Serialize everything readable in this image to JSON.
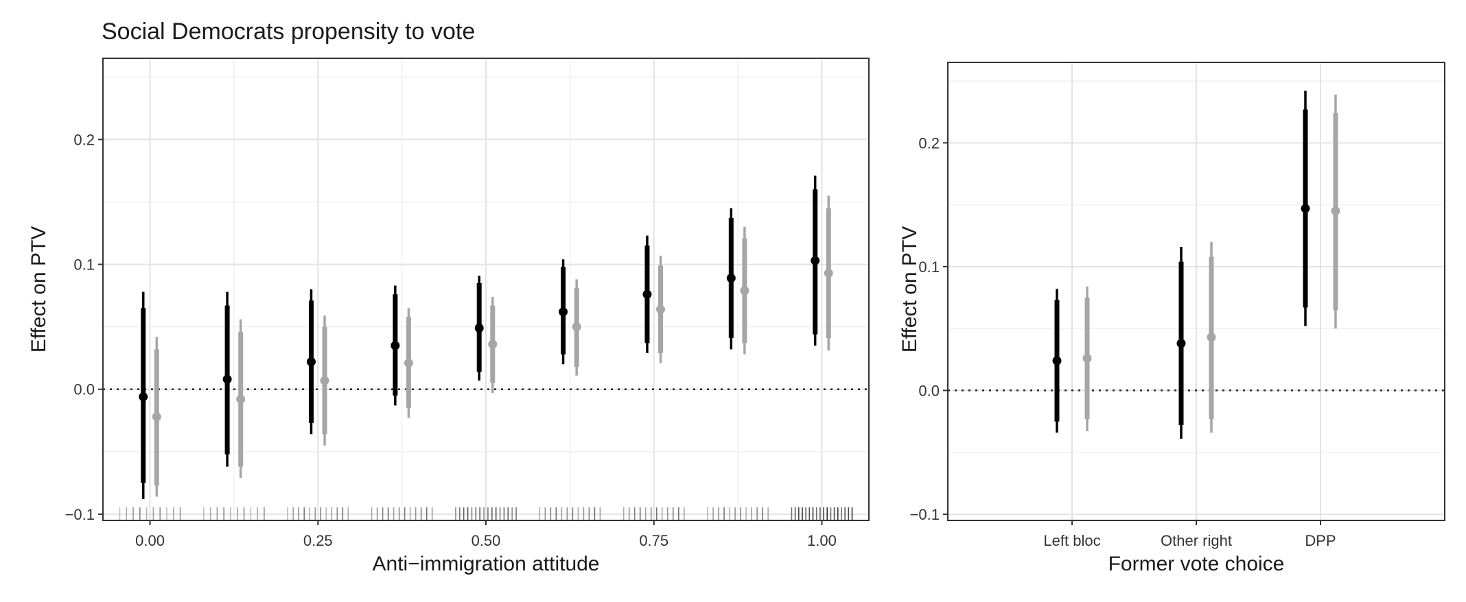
{
  "chart_data": [
    {
      "type": "scatter",
      "title": "Social Democrats propensity to vote",
      "xlabel": "Anti−immigration attitude",
      "ylabel": "Effect on PTV",
      "xlim": [
        -0.07,
        1.07
      ],
      "ylim": [
        -0.105,
        0.265
      ],
      "x_ticks": [
        0.0,
        0.25,
        0.5,
        0.75,
        1.0
      ],
      "x_tick_labels": [
        "0.00",
        "0.25",
        "0.50",
        "0.75",
        "1.00"
      ],
      "y_ticks": [
        -0.1,
        0.0,
        0.1,
        0.2
      ],
      "y_tick_labels": [
        "−0.1",
        "0.0",
        "0.1",
        "0.2"
      ],
      "grid": true,
      "reference_line": 0.0,
      "series": [
        {
          "color": "#000000",
          "points": [
            {
              "x": -0.01,
              "y": -0.006,
              "ci90": [
                -0.075,
                0.065
              ],
              "ci95": [
                -0.088,
                0.078
              ]
            },
            {
              "x": 0.115,
              "y": 0.008,
              "ci90": [
                -0.052,
                0.067
              ],
              "ci95": [
                -0.062,
                0.078
              ]
            },
            {
              "x": 0.24,
              "y": 0.022,
              "ci90": [
                -0.027,
                0.071
              ],
              "ci95": [
                -0.036,
                0.08
              ]
            },
            {
              "x": 0.365,
              "y": 0.035,
              "ci90": [
                -0.005,
                0.076
              ],
              "ci95": [
                -0.013,
                0.083
              ]
            },
            {
              "x": 0.49,
              "y": 0.049,
              "ci90": [
                0.014,
                0.085
              ],
              "ci95": [
                0.007,
                0.091
              ]
            },
            {
              "x": 0.615,
              "y": 0.062,
              "ci90": [
                0.028,
                0.098
              ],
              "ci95": [
                0.02,
                0.104
              ]
            },
            {
              "x": 0.74,
              "y": 0.076,
              "ci90": [
                0.037,
                0.115
              ],
              "ci95": [
                0.029,
                0.123
              ]
            },
            {
              "x": 0.865,
              "y": 0.089,
              "ci90": [
                0.041,
                0.137
              ],
              "ci95": [
                0.032,
                0.145
              ]
            },
            {
              "x": 0.99,
              "y": 0.103,
              "ci90": [
                0.044,
                0.16
              ],
              "ci95": [
                0.035,
                0.171
              ]
            }
          ]
        },
        {
          "color": "#a6a6a6",
          "points": [
            {
              "x": 0.01,
              "y": -0.022,
              "ci90": [
                -0.077,
                0.032
              ],
              "ci95": [
                -0.086,
                0.042
              ]
            },
            {
              "x": 0.135,
              "y": -0.008,
              "ci90": [
                -0.062,
                0.046
              ],
              "ci95": [
                -0.071,
                0.056
              ]
            },
            {
              "x": 0.26,
              "y": 0.007,
              "ci90": [
                -0.036,
                0.05
              ],
              "ci95": [
                -0.045,
                0.059
              ]
            },
            {
              "x": 0.385,
              "y": 0.021,
              "ci90": [
                -0.015,
                0.058
              ],
              "ci95": [
                -0.023,
                0.065
              ]
            },
            {
              "x": 0.51,
              "y": 0.036,
              "ci90": [
                0.005,
                0.067
              ],
              "ci95": [
                -0.003,
                0.074
              ]
            },
            {
              "x": 0.635,
              "y": 0.05,
              "ci90": [
                0.018,
                0.081
              ],
              "ci95": [
                0.011,
                0.088
              ]
            },
            {
              "x": 0.76,
              "y": 0.064,
              "ci90": [
                0.029,
                0.099
              ],
              "ci95": [
                0.021,
                0.107
              ]
            },
            {
              "x": 0.885,
              "y": 0.079,
              "ci90": [
                0.037,
                0.121
              ],
              "ci95": [
                0.028,
                0.13
              ]
            },
            {
              "x": 1.01,
              "y": 0.093,
              "ci90": [
                0.041,
                0.145
              ],
              "ci95": [
                0.031,
                0.155
              ]
            }
          ]
        }
      ],
      "rug": {
        "y": -0.1,
        "groups": [
          {
            "center": 0.0,
            "count": 10,
            "darkness": 0.35
          },
          {
            "center": 0.125,
            "count": 10,
            "darkness": 0.35
          },
          {
            "center": 0.25,
            "count": 12,
            "darkness": 0.4
          },
          {
            "center": 0.375,
            "count": 12,
            "darkness": 0.45
          },
          {
            "center": 0.5,
            "count": 16,
            "darkness": 0.6
          },
          {
            "center": 0.625,
            "count": 12,
            "darkness": 0.45
          },
          {
            "center": 0.75,
            "count": 12,
            "darkness": 0.45
          },
          {
            "center": 0.875,
            "count": 12,
            "darkness": 0.4
          },
          {
            "center": 1.0,
            "count": 18,
            "darkness": 0.75
          }
        ]
      }
    },
    {
      "type": "scatter",
      "title": "",
      "xlabel": "Former vote choice",
      "ylabel": "Effect on PTV",
      "categories": [
        "Left bloc",
        "Other right",
        "DPP"
      ],
      "ylim": [
        -0.105,
        0.265
      ],
      "y_ticks": [
        -0.1,
        0.0,
        0.1,
        0.2
      ],
      "y_tick_labels": [
        "−0.1",
        "0.0",
        "0.1",
        "0.2"
      ],
      "grid": true,
      "reference_line": 0.0,
      "series": [
        {
          "color": "#000000",
          "values": [
            0.024,
            0.038,
            0.147
          ],
          "ci90": [
            [
              -0.025,
              0.073
            ],
            [
              -0.028,
              0.104
            ],
            [
              0.067,
              0.227
            ]
          ],
          "ci95": [
            [
              -0.034,
              0.082
            ],
            [
              -0.039,
              0.116
            ],
            [
              0.052,
              0.242
            ]
          ]
        },
        {
          "color": "#a6a6a6",
          "values": [
            0.026,
            0.043,
            0.145
          ],
          "ci90": [
            [
              -0.023,
              0.075
            ],
            [
              -0.023,
              0.108
            ],
            [
              0.065,
              0.224
            ]
          ],
          "ci95": [
            [
              -0.033,
              0.084
            ],
            [
              -0.034,
              0.12
            ],
            [
              0.05,
              0.239
            ]
          ]
        }
      ]
    }
  ]
}
